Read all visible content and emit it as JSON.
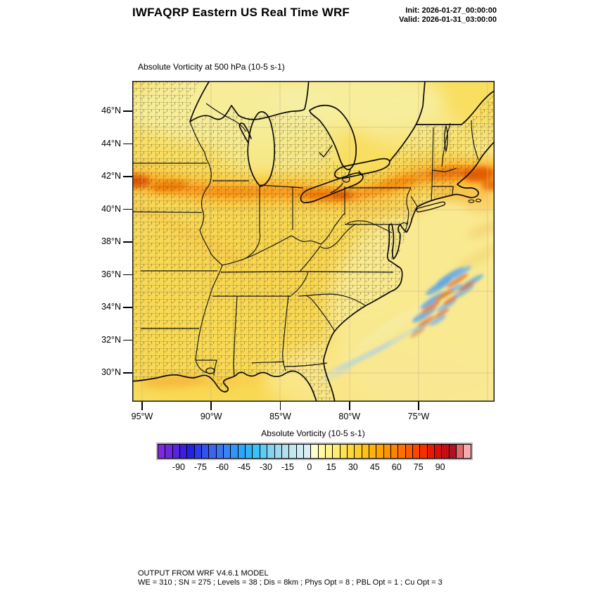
{
  "header": {
    "title": "IWFAQRP Eastern US Real Time WRF",
    "init": "Init: 2026-01-27_00:00:00",
    "valid": "Valid: 2026-01-31_03:00:00"
  },
  "plot": {
    "title": "Absolute Vorticity at 500 hPa   (10-5 s-1)",
    "lat_tick_labels": [
      "46°N",
      "44°N",
      "42°N",
      "40°N",
      "38°N",
      "36°N",
      "34°N",
      "32°N",
      "30°N"
    ],
    "lon_tick_labels": [
      "95°W",
      "90°W",
      "85°W",
      "80°W",
      "75°W"
    ]
  },
  "colorbar": {
    "title": "Absolute Vorticity  (10-5 s-1)",
    "tick_values": [
      -90,
      -75,
      -60,
      -45,
      -30,
      -15,
      0,
      15,
      30,
      45,
      60,
      75,
      90
    ],
    "min": -105,
    "max": 110,
    "interval": 5,
    "colors": [
      "#7F29DE",
      "#6E28E2",
      "#5426E0",
      "#3B1EE0",
      "#2222E6",
      "#2A3CEC",
      "#3352EE",
      "#3B64F0",
      "#3D74F2",
      "#3884F6",
      "#3294F8",
      "#2EA4FA",
      "#2FB4FB",
      "#3CC2F8",
      "#60CCF3",
      "#84D4F0",
      "#9EDAEE",
      "#B2E0EC",
      "#C2E7EF",
      "#CEEBF2",
      "#DAEFF4",
      "#FFFFC9",
      "#FFF9A8",
      "#FFF28A",
      "#FFEB6E",
      "#FFE254",
      "#FFD83E",
      "#FFCD29",
      "#FFC118",
      "#FFB30C",
      "#FFA404",
      "#FF9400",
      "#FF8300",
      "#FF7000",
      "#FF5C00",
      "#FF4600",
      "#F62E00",
      "#E91A00",
      "#D90E08",
      "#C50D14",
      "#B01024",
      "#DD6A6C",
      "#F6ACAC"
    ]
  },
  "footer": {
    "line1": "OUTPUT FROM WRF V4.6.1 MODEL",
    "line2": "WE = 310 ; SN = 275 ; Levels = 38 ; Dis = 8km ; Phys Opt = 8 ; PBL Opt = 1 ; Cu Opt = 3"
  },
  "chart_data": {
    "type": "heatmap",
    "title": "Absolute Vorticity at 500 hPa (10-5 s-1)",
    "units": "10-5 s-1",
    "region": {
      "lat_range_N": [
        30,
        46
      ],
      "lon_range_W": [
        95,
        75
      ]
    },
    "colorbar_range": [
      -105,
      110
    ],
    "colorbar_interval": 5,
    "field_summary": [
      {
        "feature": "strong positive vorticity band",
        "value_approx": "45-75",
        "location": "zonal streak near 41-42N from western map edge across Iowa, Lake Erie, Pennsylvania to southern New England"
      },
      {
        "feature": "background positive vorticity over land",
        "value_approx": "10-25",
        "location": "most of eastern US"
      },
      {
        "feature": "pale low-vorticity air",
        "value_approx": "0-10",
        "location": "upper Midwest, Great Lakes, Canada, western Atlantic"
      },
      {
        "feature": "alternating positive/negative wave train",
        "value_approx": "-40 to +45",
        "location": "Atlantic ocean near 33-36N, 72-75W"
      },
      {
        "feature": "weak positive band along Gulf coast",
        "value_approx": "25-35",
        "location": "near 29-30N along Louisiana coast"
      }
    ]
  }
}
